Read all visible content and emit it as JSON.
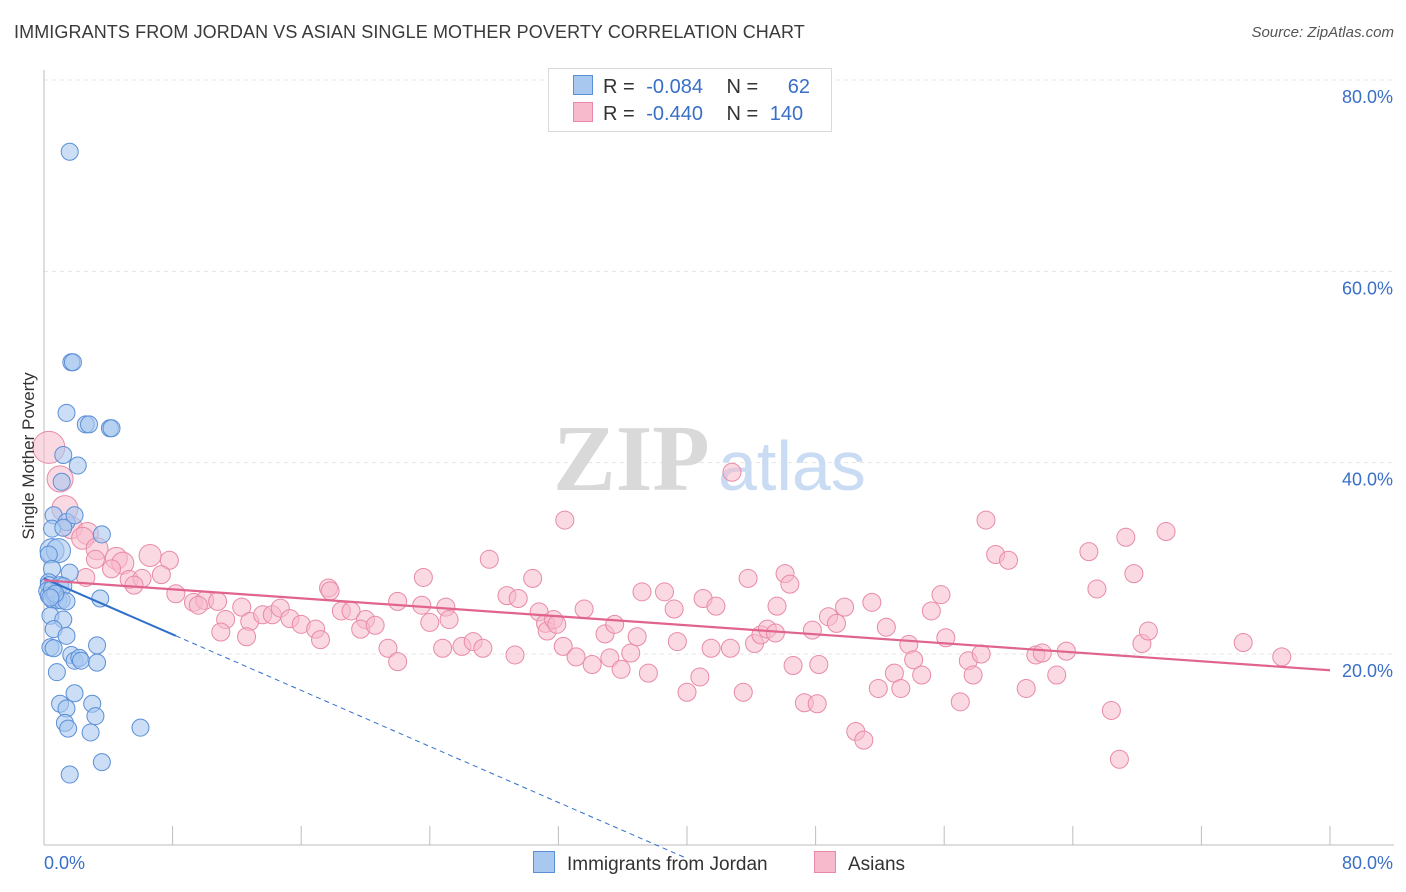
{
  "title": "IMMIGRANTS FROM JORDAN VS ASIAN SINGLE MOTHER POVERTY CORRELATION CHART",
  "source": "Source: ZipAtlas.com",
  "watermark": {
    "zip": "ZIP",
    "atlas": "atlas"
  },
  "legend": {
    "rows": [
      {
        "r_label": "R =",
        "r_value": "-0.084",
        "n_label": "N =",
        "n_value": "62"
      },
      {
        "r_label": "R =",
        "r_value": "-0.440",
        "n_label": "N =",
        "n_value": "140"
      }
    ]
  },
  "colors": {
    "series1_fill": "#a9c8f0",
    "series1_stroke": "#5b8fd6",
    "series1_line": "#2f6fcc",
    "series2_fill": "#f7b9cc",
    "series2_stroke": "#e88aa6",
    "series2_line": "#e0648e",
    "grid": "#e4e4e4",
    "tick_label": "#3a6fc7"
  },
  "chart_data": {
    "type": "scatter",
    "title": "IMMIGRANTS FROM JORDAN VS ASIAN SINGLE MOTHER POVERTY CORRELATION CHART",
    "xlabel": "",
    "ylabel": "Single Mother Poverty",
    "xlim": [
      0,
      80
    ],
    "ylim": [
      0,
      82
    ],
    "x_tick_labels": [
      "0.0%",
      "80.0%"
    ],
    "y_ticks": [
      20,
      40,
      60,
      80
    ],
    "y_tick_labels": [
      "20.0%",
      "40.0%",
      "60.0%",
      "80.0%"
    ],
    "grid": true,
    "legend_position": "top-center",
    "series": [
      {
        "name": "Immigrants from Jordan",
        "trend": {
          "x0": 0,
          "y0": 27.9,
          "x1": 8.2,
          "y1": 21.9,
          "dashed_to_x": 40
        },
        "points": [
          [
            1.6,
            72.5
          ],
          [
            1.7,
            50.5
          ],
          [
            1.8,
            50.5
          ],
          [
            1.4,
            45.2
          ],
          [
            2.6,
            44.0
          ],
          [
            2.8,
            44.0
          ],
          [
            4.1,
            43.6
          ],
          [
            4.2,
            43.6
          ],
          [
            1.2,
            40.8
          ],
          [
            1.1,
            38.0
          ],
          [
            2.1,
            39.7
          ],
          [
            0.6,
            34.5
          ],
          [
            1.4,
            33.8
          ],
          [
            0.5,
            33.1
          ],
          [
            1.2,
            33.2
          ],
          [
            1.9,
            34.5
          ],
          [
            3.6,
            32.5
          ],
          [
            0.5,
            30.8
          ],
          [
            0.9,
            30.8
          ],
          [
            0.3,
            30.4
          ],
          [
            0.5,
            28.9
          ],
          [
            1.6,
            28.5
          ],
          [
            0.3,
            27.5
          ],
          [
            0.3,
            27.2
          ],
          [
            1.0,
            27.2
          ],
          [
            1.2,
            27.1
          ],
          [
            0.2,
            26.6
          ],
          [
            0.3,
            26.1
          ],
          [
            0.6,
            26.1
          ],
          [
            0.7,
            26.0
          ],
          [
            0.5,
            25.7
          ],
          [
            0.9,
            25.6
          ],
          [
            1.1,
            25.6
          ],
          [
            1.4,
            25.5
          ],
          [
            3.5,
            25.8
          ],
          [
            0.4,
            24.0
          ],
          [
            1.2,
            23.6
          ],
          [
            0.6,
            22.6
          ],
          [
            1.4,
            21.9
          ],
          [
            0.4,
            20.7
          ],
          [
            0.6,
            20.6
          ],
          [
            3.3,
            20.9
          ],
          [
            1.7,
            19.9
          ],
          [
            1.9,
            19.3
          ],
          [
            2.2,
            19.6
          ],
          [
            2.3,
            19.3
          ],
          [
            3.3,
            19.1
          ],
          [
            0.8,
            18.1
          ],
          [
            1.9,
            15.9
          ],
          [
            1.0,
            14.8
          ],
          [
            3.0,
            14.8
          ],
          [
            1.4,
            14.3
          ],
          [
            3.2,
            13.5
          ],
          [
            1.3,
            12.8
          ],
          [
            1.5,
            12.2
          ],
          [
            2.9,
            11.8
          ],
          [
            6.0,
            12.3
          ],
          [
            3.6,
            8.7
          ],
          [
            1.6,
            7.4
          ],
          [
            0.5,
            26.8
          ],
          [
            0.7,
            26.3
          ],
          [
            0.4,
            25.9
          ]
        ]
      },
      {
        "name": "Asians",
        "trend": {
          "x0": 0,
          "y0": 27.7,
          "x1": 80,
          "y1": 18.3
        },
        "points": [
          [
            0.3,
            41.6
          ],
          [
            1.0,
            38.3
          ],
          [
            1.3,
            35.2
          ],
          [
            1.7,
            33.2
          ],
          [
            2.7,
            32.6
          ],
          [
            2.4,
            32.1
          ],
          [
            3.3,
            31.0
          ],
          [
            4.5,
            30.0
          ],
          [
            4.9,
            29.5
          ],
          [
            6.6,
            30.3
          ],
          [
            7.8,
            29.8
          ],
          [
            3.2,
            29.9
          ],
          [
            4.2,
            28.9
          ],
          [
            2.6,
            28.0
          ],
          [
            5.3,
            27.8
          ],
          [
            6.1,
            27.9
          ],
          [
            7.3,
            28.3
          ],
          [
            5.6,
            27.2
          ],
          [
            8.2,
            26.3
          ],
          [
            9.3,
            25.4
          ],
          [
            10.0,
            25.6
          ],
          [
            9.6,
            25.1
          ],
          [
            10.8,
            25.5
          ],
          [
            11.3,
            23.6
          ],
          [
            12.3,
            24.9
          ],
          [
            12.8,
            23.4
          ],
          [
            13.6,
            24.1
          ],
          [
            14.2,
            24.1
          ],
          [
            14.7,
            24.8
          ],
          [
            15.3,
            23.7
          ],
          [
            11.0,
            22.3
          ],
          [
            12.6,
            21.8
          ],
          [
            16.0,
            23.1
          ],
          [
            16.9,
            22.6
          ],
          [
            17.2,
            21.5
          ],
          [
            17.7,
            26.9
          ],
          [
            17.8,
            26.6
          ],
          [
            18.5,
            24.5
          ],
          [
            19.1,
            24.5
          ],
          [
            20.0,
            23.6
          ],
          [
            19.7,
            22.6
          ],
          [
            20.6,
            23.0
          ],
          [
            22.0,
            25.5
          ],
          [
            21.4,
            20.6
          ],
          [
            22.0,
            19.2
          ],
          [
            23.5,
            25.1
          ],
          [
            24.0,
            23.3
          ],
          [
            23.6,
            28.0
          ],
          [
            25.0,
            24.9
          ],
          [
            25.2,
            23.6
          ],
          [
            24.8,
            20.6
          ],
          [
            26.0,
            20.8
          ],
          [
            26.7,
            21.3
          ],
          [
            27.3,
            20.6
          ],
          [
            27.7,
            29.9
          ],
          [
            28.8,
            26.1
          ],
          [
            29.5,
            25.8
          ],
          [
            29.3,
            19.9
          ],
          [
            30.4,
            27.9
          ],
          [
            30.8,
            24.4
          ],
          [
            31.2,
            23.2
          ],
          [
            31.3,
            22.4
          ],
          [
            31.7,
            23.6
          ],
          [
            31.9,
            23.1
          ],
          [
            32.3,
            20.8
          ],
          [
            32.4,
            34.0
          ],
          [
            33.1,
            19.7
          ],
          [
            33.6,
            24.7
          ],
          [
            34.1,
            18.9
          ],
          [
            34.9,
            22.1
          ],
          [
            35.2,
            19.6
          ],
          [
            35.5,
            23.1
          ],
          [
            35.9,
            18.4
          ],
          [
            36.5,
            20.1
          ],
          [
            36.9,
            21.8
          ],
          [
            37.2,
            26.5
          ],
          [
            37.6,
            18.0
          ],
          [
            38.6,
            26.5
          ],
          [
            39.4,
            21.3
          ],
          [
            39.2,
            24.7
          ],
          [
            40.0,
            16.0
          ],
          [
            40.8,
            17.6
          ],
          [
            41.0,
            25.8
          ],
          [
            41.5,
            20.6
          ],
          [
            41.8,
            25.0
          ],
          [
            42.7,
            20.6
          ],
          [
            42.8,
            39.0
          ],
          [
            43.5,
            16.0
          ],
          [
            43.8,
            27.9
          ],
          [
            44.2,
            21.1
          ],
          [
            44.6,
            22.0
          ],
          [
            45.0,
            22.6
          ],
          [
            45.5,
            22.2
          ],
          [
            45.6,
            25.0
          ],
          [
            46.1,
            28.4
          ],
          [
            46.6,
            18.8
          ],
          [
            46.4,
            27.3
          ],
          [
            47.3,
            14.9
          ],
          [
            47.8,
            22.5
          ],
          [
            48.1,
            14.8
          ],
          [
            48.2,
            18.9
          ],
          [
            48.8,
            23.9
          ],
          [
            49.3,
            23.2
          ],
          [
            49.8,
            24.9
          ],
          [
            50.5,
            11.9
          ],
          [
            51.0,
            11.0
          ],
          [
            51.5,
            25.4
          ],
          [
            51.9,
            16.4
          ],
          [
            52.4,
            22.8
          ],
          [
            52.9,
            18.0
          ],
          [
            53.3,
            16.4
          ],
          [
            53.8,
            21.0
          ],
          [
            54.1,
            19.4
          ],
          [
            54.6,
            17.8
          ],
          [
            55.2,
            24.5
          ],
          [
            55.8,
            26.2
          ],
          [
            56.1,
            21.7
          ],
          [
            57.0,
            15.0
          ],
          [
            57.5,
            19.3
          ],
          [
            57.8,
            17.8
          ],
          [
            58.3,
            20.0
          ],
          [
            58.6,
            34.0
          ],
          [
            59.2,
            30.4
          ],
          [
            60.0,
            29.8
          ],
          [
            61.1,
            16.4
          ],
          [
            61.7,
            19.9
          ],
          [
            62.1,
            20.1
          ],
          [
            63.0,
            17.8
          ],
          [
            63.6,
            20.3
          ],
          [
            65.0,
            30.7
          ],
          [
            65.5,
            26.8
          ],
          [
            66.4,
            14.1
          ],
          [
            66.9,
            9.0
          ],
          [
            67.3,
            32.2
          ],
          [
            67.8,
            28.4
          ],
          [
            68.3,
            21.1
          ],
          [
            68.7,
            22.4
          ],
          [
            69.8,
            32.8
          ],
          [
            74.6,
            21.2
          ],
          [
            77.0,
            19.7
          ]
        ]
      }
    ]
  },
  "bottom_legend": [
    {
      "label": "Immigrants from Jordan"
    },
    {
      "label": "Asians"
    }
  ]
}
